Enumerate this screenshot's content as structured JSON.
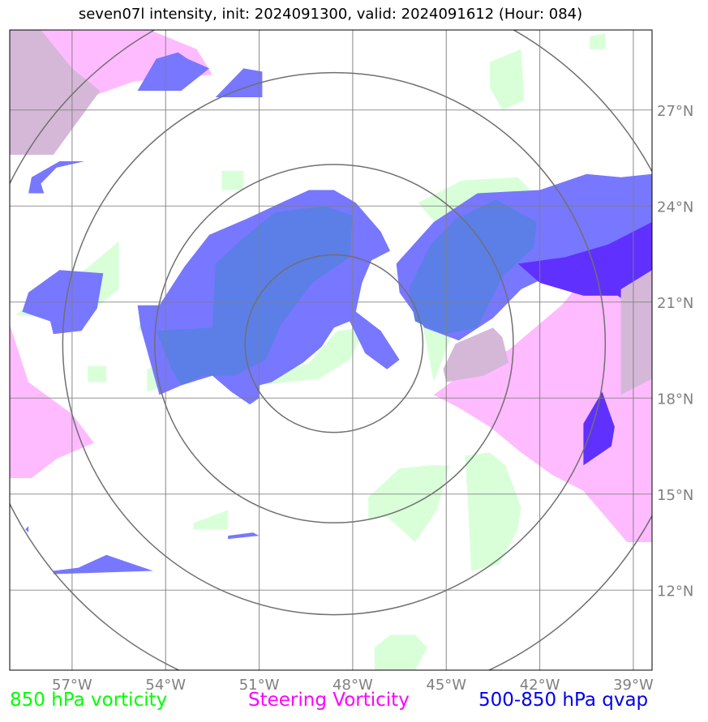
{
  "title": "seven07l intensity, init: 2024091300, valid: 2024091612 (Hour: 084)",
  "map": {
    "lon_range": [
      -59,
      -38.4
    ],
    "lat_range": [
      9.5,
      29.5
    ],
    "grid_color": "#808080",
    "ring_color": "#707070",
    "lon_ticks": [
      {
        "value": -57,
        "label": "57°W"
      },
      {
        "value": -54,
        "label": "54°W"
      },
      {
        "value": -51,
        "label": "51°W"
      },
      {
        "value": -48,
        "label": "48°W"
      },
      {
        "value": -45,
        "label": "45°W"
      },
      {
        "value": -42,
        "label": "42°W"
      },
      {
        "value": -39,
        "label": "39°W"
      }
    ],
    "lat_ticks": [
      {
        "value": 12,
        "label": "12°N"
      },
      {
        "value": 15,
        "label": "15°N"
      },
      {
        "value": 18,
        "label": "18°N"
      },
      {
        "value": 21,
        "label": "21°N"
      },
      {
        "value": 24,
        "label": "24°N"
      },
      {
        "value": 27,
        "label": "27°N"
      }
    ],
    "storm_center": {
      "lon": -48.6,
      "lat": 19.7
    },
    "range_rings_deg": [
      2.85,
      5.75,
      8.7,
      11.6
    ]
  },
  "layers": {
    "vorticity_850": {
      "color": "#ccffcc",
      "regions": [
        [
          [
            -55.5,
            22.9
          ],
          [
            -56.6,
            22.0
          ],
          [
            -58.2,
            21.1
          ],
          [
            -58.8,
            20.6
          ],
          [
            -56.8,
            20.4
          ],
          [
            -55.5,
            21.4
          ]
        ],
        [
          [
            -54.6,
            20.9
          ],
          [
            -54.9,
            20.1
          ],
          [
            -54.0,
            20.2
          ],
          [
            -53.7,
            20.9
          ]
        ],
        [
          [
            -56.5,
            19.0
          ],
          [
            -55.9,
            19.0
          ],
          [
            -55.9,
            18.5
          ],
          [
            -56.5,
            18.5
          ]
        ],
        [
          [
            -54.6,
            18.2
          ],
          [
            -53.0,
            18.7
          ],
          [
            -52.2,
            19.2
          ],
          [
            -52.9,
            19.6
          ],
          [
            -54.6,
            18.9
          ]
        ],
        [
          [
            -51.1,
            18.4
          ],
          [
            -49.1,
            18.6
          ],
          [
            -48.1,
            19.2
          ],
          [
            -47.6,
            20.2
          ],
          [
            -48.5,
            20.1
          ],
          [
            -49.4,
            19.1
          ],
          [
            -50.3,
            18.8
          ]
        ],
        [
          [
            -52.2,
            25.1
          ],
          [
            -51.5,
            25.1
          ],
          [
            -51.5,
            24.5
          ],
          [
            -52.2,
            24.5
          ]
        ],
        [
          [
            -45.9,
            24.1
          ],
          [
            -44.5,
            24.8
          ],
          [
            -42.7,
            24.9
          ],
          [
            -41.6,
            23.8
          ],
          [
            -42.9,
            22.0
          ],
          [
            -44.7,
            20.3
          ],
          [
            -45.4,
            18.5
          ],
          [
            -45.6,
            19.5
          ],
          [
            -46.0,
            21.5
          ],
          [
            -45.1,
            23.2
          ]
        ],
        [
          [
            -43.6,
            28.5
          ],
          [
            -42.6,
            28.9
          ],
          [
            -42.5,
            27.3
          ],
          [
            -43.2,
            27.0
          ],
          [
            -43.6,
            27.7
          ]
        ],
        [
          [
            -40.4,
            29.3
          ],
          [
            -39.9,
            29.4
          ],
          [
            -39.9,
            28.9
          ],
          [
            -40.4,
            28.9
          ]
        ],
        [
          [
            -47.5,
            14.9
          ],
          [
            -46.5,
            15.8
          ],
          [
            -45.5,
            15.9
          ],
          [
            -44.9,
            15.9
          ],
          [
            -45.3,
            14.5
          ],
          [
            -46.0,
            13.5
          ],
          [
            -46.9,
            14.3
          ],
          [
            -47.5,
            14.2
          ]
        ],
        [
          [
            -44.4,
            16.2
          ],
          [
            -43.6,
            16.3
          ],
          [
            -43.1,
            15.9
          ],
          [
            -42.6,
            14.6
          ],
          [
            -42.7,
            13.9
          ],
          [
            -43.3,
            12.8
          ],
          [
            -44.2,
            12.6
          ],
          [
            -44.3,
            14.7
          ]
        ],
        [
          [
            -53.1,
            14.1
          ],
          [
            -52.0,
            14.5
          ],
          [
            -52.0,
            13.9
          ],
          [
            -53.1,
            13.9
          ]
        ],
        [
          [
            -47.3,
            10.2
          ],
          [
            -46.8,
            10.6
          ],
          [
            -46.0,
            10.6
          ],
          [
            -45.6,
            10.2
          ],
          [
            -46.0,
            9.5
          ],
          [
            -47.3,
            9.5
          ]
        ]
      ]
    },
    "steering_vorticity": {
      "color": "#ffbbff",
      "regions": [
        [
          [
            -59,
            29.5
          ],
          [
            -54.5,
            29.5
          ],
          [
            -53.0,
            28.9
          ],
          [
            -52.5,
            28.1
          ],
          [
            -55.0,
            27.9
          ],
          [
            -57.3,
            27.1
          ],
          [
            -58.0,
            25.6
          ],
          [
            -59,
            25.6
          ]
        ],
        [
          [
            -59,
            20.3
          ],
          [
            -58.4,
            18.5
          ],
          [
            -57.0,
            17.5
          ],
          [
            -56.3,
            16.6
          ],
          [
            -57.5,
            16.1
          ],
          [
            -58.3,
            15.5
          ],
          [
            -59,
            15.5
          ]
        ],
        [
          [
            -45.4,
            18.1
          ],
          [
            -44.3,
            18.9
          ],
          [
            -43.0,
            19.5
          ],
          [
            -41.3,
            20.9
          ],
          [
            -40.2,
            22.2
          ],
          [
            -39.0,
            22.7
          ],
          [
            -38.4,
            23.4
          ],
          [
            -38.4,
            13.5
          ],
          [
            -39.2,
            13.5
          ],
          [
            -40.6,
            15.1
          ],
          [
            -41.6,
            15.6
          ],
          [
            -42.6,
            16.3
          ],
          [
            -43.6,
            17.1
          ],
          [
            -44.6,
            17.7
          ]
        ]
      ]
    },
    "qvap_500_850": {
      "color": "#7777ff",
      "regions": [
        [
          [
            -54.9,
            20.9
          ],
          [
            -54.2,
            20.9
          ],
          [
            -53.4,
            22.1
          ],
          [
            -52.6,
            23.1
          ],
          [
            -51.4,
            23.6
          ],
          [
            -50.3,
            24.1
          ],
          [
            -49.4,
            24.5
          ],
          [
            -48.6,
            24.5
          ],
          [
            -47.9,
            24.1
          ],
          [
            -47.1,
            23.2
          ],
          [
            -46.8,
            22.6
          ],
          [
            -47.4,
            22.3
          ],
          [
            -47.7,
            21.6
          ],
          [
            -47.9,
            20.7
          ],
          [
            -47.1,
            20.1
          ],
          [
            -46.5,
            19.2
          ],
          [
            -46.9,
            18.9
          ],
          [
            -47.6,
            19.4
          ],
          [
            -48.1,
            20.4
          ],
          [
            -48.6,
            20.2
          ],
          [
            -49.0,
            19.6
          ],
          [
            -49.6,
            19.1
          ],
          [
            -50.1,
            18.8
          ],
          [
            -50.6,
            18.5
          ],
          [
            -51.0,
            18.4
          ],
          [
            -51.0,
            18.0
          ],
          [
            -51.3,
            17.8
          ],
          [
            -51.9,
            18.2
          ],
          [
            -52.5,
            18.7
          ],
          [
            -53.5,
            18.4
          ],
          [
            -54.2,
            18.1
          ],
          [
            -54.6,
            19.5
          ],
          [
            -54.8,
            20.2
          ]
        ],
        [
          [
            -46.6,
            22.2
          ],
          [
            -45.4,
            23.5
          ],
          [
            -44.0,
            24.4
          ],
          [
            -42.0,
            24.5
          ],
          [
            -40.5,
            25.0
          ],
          [
            -39.4,
            24.9
          ],
          [
            -38.4,
            25.0
          ],
          [
            -38.4,
            20.8
          ],
          [
            -39.5,
            21.5
          ],
          [
            -41.1,
            22.1
          ],
          [
            -42.6,
            21.4
          ],
          [
            -43.5,
            20.5
          ],
          [
            -44.6,
            19.8
          ],
          [
            -45.7,
            20.2
          ],
          [
            -46.5,
            21.3
          ]
        ],
        [
          [
            -57.4,
            22.0
          ],
          [
            -56.0,
            21.9
          ],
          [
            -56.2,
            20.8
          ],
          [
            -56.7,
            20.1
          ],
          [
            -57.6,
            20.0
          ],
          [
            -57.7,
            20.4
          ],
          [
            -58.6,
            20.7
          ],
          [
            -58.4,
            21.3
          ]
        ],
        [
          [
            -58.3,
            24.9
          ],
          [
            -57.4,
            25.4
          ],
          [
            -56.6,
            25.4
          ],
          [
            -57.5,
            25.2
          ],
          [
            -58.0,
            24.7
          ],
          [
            -57.9,
            24.4
          ],
          [
            -58.4,
            24.4
          ]
        ],
        [
          [
            -54.9,
            27.6
          ],
          [
            -54.3,
            28.6
          ],
          [
            -53.6,
            28.8
          ],
          [
            -53.3,
            28.6
          ],
          [
            -52.6,
            28.3
          ],
          [
            -53.5,
            27.6
          ]
        ],
        [
          [
            -52.4,
            27.4
          ],
          [
            -51.5,
            28.3
          ],
          [
            -50.9,
            28.2
          ],
          [
            -50.9,
            27.4
          ]
        ],
        [
          [
            -57.6,
            12.6
          ],
          [
            -56.8,
            12.7
          ],
          [
            -55.9,
            13.1
          ],
          [
            -55.3,
            12.9
          ],
          [
            -54.4,
            12.6
          ],
          [
            -57.6,
            12.5
          ]
        ],
        [
          [
            -52.0,
            13.7
          ],
          [
            -51.2,
            13.8
          ],
          [
            -51.0,
            13.7
          ],
          [
            -52.0,
            13.6
          ]
        ],
        [
          [
            -58.5,
            13.9
          ],
          [
            -58.4,
            14.0
          ],
          [
            -58.4,
            13.8
          ]
        ]
      ]
    },
    "qvap_dark": {
      "color": "#6030ff",
      "regions": [
        [
          [
            -42.7,
            22.2
          ],
          [
            -41.2,
            22.4
          ],
          [
            -39.8,
            22.8
          ],
          [
            -38.4,
            23.5
          ],
          [
            -38.4,
            20.4
          ],
          [
            -39.5,
            21.2
          ],
          [
            -40.6,
            21.2
          ],
          [
            -42.0,
            21.6
          ]
        ],
        [
          [
            -40.0,
            18.2
          ],
          [
            -39.6,
            17.1
          ],
          [
            -39.7,
            16.5
          ],
          [
            -40.6,
            15.9
          ],
          [
            -40.6,
            17.2
          ]
        ]
      ]
    },
    "qvap_core": {
      "color": "#5b7fe6",
      "regions": [
        [
          [
            -54.3,
            20.1
          ],
          [
            -52.5,
            20.2
          ],
          [
            -52.4,
            22.2
          ],
          [
            -51.5,
            23.0
          ],
          [
            -50.5,
            23.8
          ],
          [
            -48.9,
            24.0
          ],
          [
            -48.0,
            23.7
          ],
          [
            -48.1,
            22.4
          ],
          [
            -49.3,
            21.6
          ],
          [
            -50.3,
            20.3
          ],
          [
            -50.8,
            19.2
          ],
          [
            -51.8,
            18.7
          ],
          [
            -52.8,
            18.7
          ],
          [
            -53.5,
            18.4
          ],
          [
            -53.8,
            18.9
          ]
        ],
        [
          [
            -46.2,
            21.4
          ],
          [
            -45.5,
            22.8
          ],
          [
            -44.7,
            23.6
          ],
          [
            -43.4,
            24.2
          ],
          [
            -42.1,
            23.5
          ],
          [
            -42.2,
            22.7
          ],
          [
            -43.2,
            21.8
          ],
          [
            -44.0,
            20.2
          ],
          [
            -45.1,
            20.0
          ],
          [
            -46.0,
            20.4
          ]
        ]
      ]
    },
    "steering_overlay": {
      "color": "#d5b8d8",
      "regions": [
        [
          [
            -59,
            29.5
          ],
          [
            -58.0,
            29.5
          ],
          [
            -57.0,
            28.3
          ],
          [
            -56.1,
            27.6
          ],
          [
            -57.6,
            25.6
          ],
          [
            -59,
            25.6
          ]
        ],
        [
          [
            -44.7,
            19.7
          ],
          [
            -43.5,
            20.2
          ],
          [
            -43.2,
            19.9
          ],
          [
            -43.0,
            19.1
          ],
          [
            -43.8,
            18.7
          ],
          [
            -45.0,
            18.5
          ],
          [
            -45.1,
            18.9
          ]
        ],
        [
          [
            -39.4,
            21.4
          ],
          [
            -38.4,
            22.0
          ],
          [
            -38.4,
            18.6
          ],
          [
            -39.4,
            18.1
          ]
        ]
      ]
    }
  },
  "legend": {
    "vorticity_850": {
      "label": "850 hPa vorticity",
      "color": "#00ff00"
    },
    "steering_vorticity": {
      "label": "Steering Vorticity",
      "color": "#ff00ff"
    },
    "qvap_500_850": {
      "label": "500-850 hPa qvap",
      "color": "#0000ee"
    }
  }
}
